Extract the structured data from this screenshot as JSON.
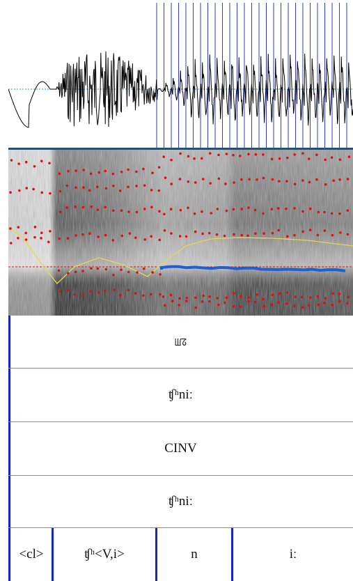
{
  "tiers": [
    {
      "label": "ꡆꡞ"
    },
    {
      "label": "ʧʰniː"
    },
    {
      "label": "CINV"
    },
    {
      "label": "ʧʰniː"
    }
  ],
  "segments": [
    {
      "label": "<cl>"
    },
    {
      "label": "ʧʰ<V,i>"
    },
    {
      "label": "n"
    },
    {
      "label": "iː"
    }
  ],
  "colors": {
    "boundary": "#1626c4",
    "formant": "#e01010",
    "pitch": "#1f5fd0",
    "intensity": "#e8d84a",
    "waveform": "#000000",
    "zero_line": "#2a8fd0"
  }
}
